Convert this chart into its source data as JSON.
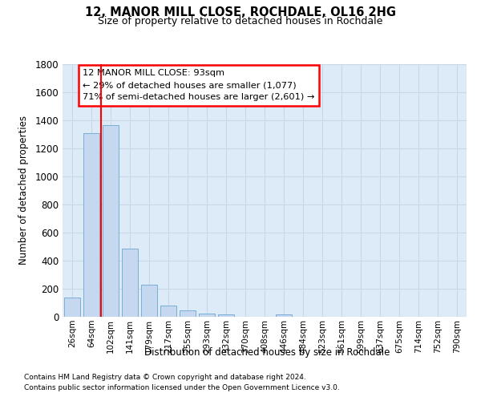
{
  "title1": "12, MANOR MILL CLOSE, ROCHDALE, OL16 2HG",
  "title2": "Size of property relative to detached houses in Rochdale",
  "xlabel": "Distribution of detached houses by size in Rochdale",
  "ylabel": "Number of detached properties",
  "bar_labels": [
    "26sqm",
    "64sqm",
    "102sqm",
    "141sqm",
    "179sqm",
    "217sqm",
    "255sqm",
    "293sqm",
    "332sqm",
    "370sqm",
    "408sqm",
    "446sqm",
    "484sqm",
    "523sqm",
    "561sqm",
    "599sqm",
    "637sqm",
    "675sqm",
    "714sqm",
    "752sqm",
    "790sqm"
  ],
  "bar_values": [
    140,
    1310,
    1365,
    487,
    230,
    80,
    47,
    25,
    15,
    0,
    0,
    20,
    0,
    0,
    0,
    0,
    0,
    0,
    0,
    0,
    0
  ],
  "bar_color": "#c5d8f0",
  "bar_edge_color": "#7aaed6",
  "grid_color": "#c8d8e8",
  "bg_color": "#ddeaf7",
  "annotation_line1": "12 MANOR MILL CLOSE: 93sqm",
  "annotation_line2": "← 29% of detached houses are smaller (1,077)",
  "annotation_line3": "71% of semi-detached houses are larger (2,601) →",
  "red_line_x": 1.5,
  "ylim_max": 1800,
  "footnote1": "Contains HM Land Registry data © Crown copyright and database right 2024.",
  "footnote2": "Contains public sector information licensed under the Open Government Licence v3.0."
}
